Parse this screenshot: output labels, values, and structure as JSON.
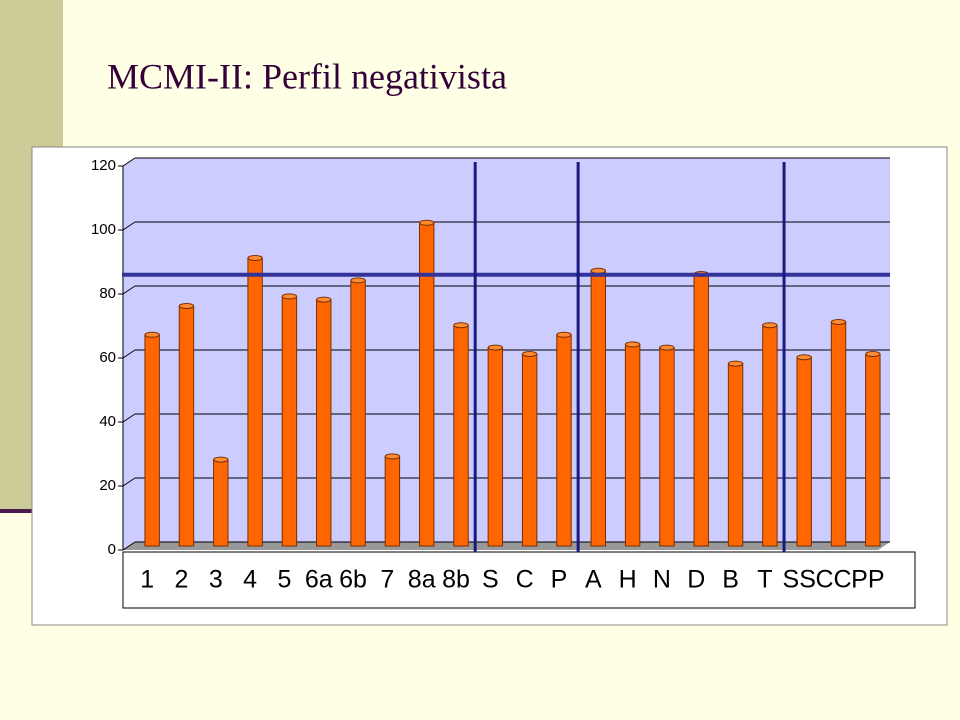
{
  "chart_data": {
    "type": "bar",
    "title": "MCMI-II: Perfil negativista",
    "categories": [
      "1",
      "2",
      "3",
      "4",
      "5",
      "6a",
      "6b",
      "7",
      "8a",
      "8b",
      "S",
      "C",
      "P",
      "A",
      "H",
      "N",
      "D",
      "B",
      "T",
      "SS",
      "CC",
      "PP"
    ],
    "values": [
      66,
      75,
      27,
      90,
      78,
      77,
      83,
      28,
      101,
      69,
      62,
      60,
      66,
      86,
      63,
      62,
      85,
      57,
      69,
      59,
      70,
      60
    ],
    "color": "#ff6600",
    "ylim": [
      0,
      120
    ],
    "yticks": [
      0,
      20,
      40,
      60,
      80,
      100,
      120
    ],
    "grid": true,
    "reference_line": 86
  }
}
